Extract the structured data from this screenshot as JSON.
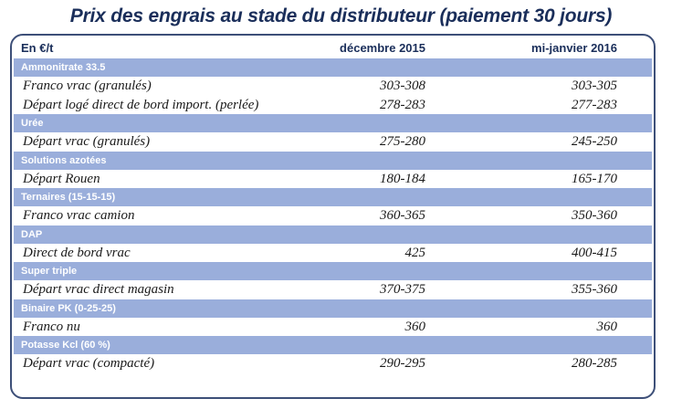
{
  "title": "Prix des engrais au stade du distributeur (paiement 30 jours)",
  "columns": [
    "En €/t",
    "décembre 2015",
    "mi-janvier 2016"
  ],
  "groups": [
    {
      "category": "Ammonitrate 33.5",
      "items": [
        {
          "label": "Franco vrac (granulés)",
          "dec2015": "303-308",
          "jan2016": "303-305"
        },
        {
          "label": "Départ logé direct de bord import. (perlée)",
          "dec2015": "278-283",
          "jan2016": "277-283"
        }
      ]
    },
    {
      "category": "Urée",
      "items": [
        {
          "label": "Départ vrac (granulés)",
          "dec2015": "275-280",
          "jan2016": "245-250"
        }
      ]
    },
    {
      "category": "Solutions azotées",
      "items": [
        {
          "label": "Départ Rouen",
          "dec2015": "180-184",
          "jan2016": "165-170"
        }
      ]
    },
    {
      "category": "Ternaires (15-15-15)",
      "items": [
        {
          "label": "Franco vrac camion",
          "dec2015": "360-365",
          "jan2016": "350-360"
        }
      ]
    },
    {
      "category": "DAP",
      "items": [
        {
          "label": "Direct de bord vrac",
          "dec2015": "425",
          "jan2016": "400-415"
        }
      ]
    },
    {
      "category": "Super triple",
      "items": [
        {
          "label": "Départ vrac direct magasin",
          "dec2015": "370-375",
          "jan2016": "355-360"
        }
      ]
    },
    {
      "category": "Binaire PK (0-25-25)",
      "items": [
        {
          "label": "Franco nu",
          "dec2015": "360",
          "jan2016": "360"
        }
      ]
    },
    {
      "category": "Potasse Kcl (60 %)",
      "items": [
        {
          "label": "Départ vrac (compacté)",
          "dec2015": "290-295",
          "jan2016": "280-285"
        }
      ]
    }
  ]
}
